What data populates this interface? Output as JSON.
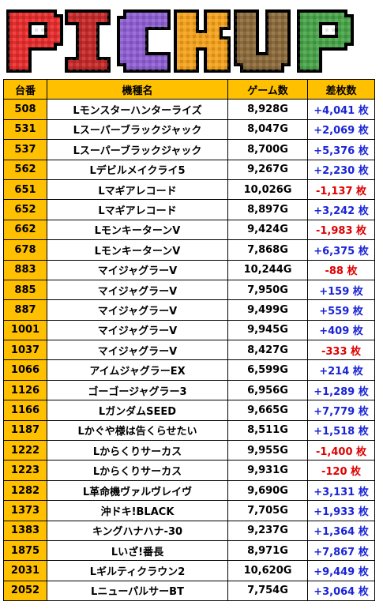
{
  "banner": {
    "letters": [
      "P",
      "I",
      "C",
      "K",
      "U",
      "P"
    ],
    "colors": [
      "#e52d2d",
      "#c42a2a",
      "#8e5fd0",
      "#f2a21e",
      "#8b6a3c",
      "#49a34a"
    ]
  },
  "table": {
    "headers": [
      "台番",
      "機種名",
      "ゲーム数",
      "差枚数"
    ],
    "rows": [
      {
        "num": "508",
        "name": "Lモンスターハンターライズ",
        "games": "8,928G",
        "diff": "+4,041 枚",
        "sign": "pos"
      },
      {
        "num": "531",
        "name": "Lスーパーブラックジャック",
        "games": "8,047G",
        "diff": "+2,069 枚",
        "sign": "pos"
      },
      {
        "num": "537",
        "name": "Lスーパーブラックジャック",
        "games": "8,700G",
        "diff": "+5,376 枚",
        "sign": "pos"
      },
      {
        "num": "562",
        "name": "Lデビルメイクライ5",
        "games": "9,267G",
        "diff": "+2,230 枚",
        "sign": "pos"
      },
      {
        "num": "651",
        "name": "Lマギアレコード",
        "games": "10,026G",
        "diff": "-1,137 枚",
        "sign": "neg"
      },
      {
        "num": "652",
        "name": "Lマギアレコード",
        "games": "8,897G",
        "diff": "+3,242 枚",
        "sign": "pos"
      },
      {
        "num": "662",
        "name": "LモンキーターンV",
        "games": "9,424G",
        "diff": "-1,983 枚",
        "sign": "neg"
      },
      {
        "num": "678",
        "name": "LモンキーターンV",
        "games": "7,868G",
        "diff": "+6,375 枚",
        "sign": "pos"
      },
      {
        "num": "883",
        "name": "マイジャグラーV",
        "games": "10,244G",
        "diff": "-88 枚",
        "sign": "neg"
      },
      {
        "num": "885",
        "name": "マイジャグラーV",
        "games": "7,950G",
        "diff": "+159 枚",
        "sign": "pos"
      },
      {
        "num": "887",
        "name": "マイジャグラーV",
        "games": "9,499G",
        "diff": "+559 枚",
        "sign": "pos"
      },
      {
        "num": "1001",
        "name": "マイジャグラーV",
        "games": "9,945G",
        "diff": "+409 枚",
        "sign": "pos"
      },
      {
        "num": "1037",
        "name": "マイジャグラーV",
        "games": "8,427G",
        "diff": "-333 枚",
        "sign": "neg"
      },
      {
        "num": "1066",
        "name": "アイムジャグラーEX",
        "games": "6,599G",
        "diff": "+214 枚",
        "sign": "pos"
      },
      {
        "num": "1126",
        "name": "ゴーゴージャグラー3",
        "games": "6,956G",
        "diff": "+1,289 枚",
        "sign": "pos"
      },
      {
        "num": "1166",
        "name": "LガンダムSEED",
        "games": "9,665G",
        "diff": "+7,779 枚",
        "sign": "pos"
      },
      {
        "num": "1187",
        "name": "Lかぐや様は告くらせたい",
        "games": "8,511G",
        "diff": "+1,518 枚",
        "sign": "pos"
      },
      {
        "num": "1222",
        "name": "Lからくりサーカス",
        "games": "9,955G",
        "diff": "-1,400 枚",
        "sign": "neg"
      },
      {
        "num": "1223",
        "name": "Lからくりサーカス",
        "games": "9,931G",
        "diff": "-120 枚",
        "sign": "neg"
      },
      {
        "num": "1282",
        "name": "L革命機ヴァルヴレイヴ",
        "games": "9,690G",
        "diff": "+3,131 枚",
        "sign": "pos"
      },
      {
        "num": "1373",
        "name": "沖ドキ!BLACK",
        "games": "7,705G",
        "diff": "+1,933 枚",
        "sign": "pos"
      },
      {
        "num": "1383",
        "name": "キングハナハナ-30",
        "games": "9,237G",
        "diff": "+1,364 枚",
        "sign": "pos"
      },
      {
        "num": "1875",
        "name": "Lいざ!番長",
        "games": "8,971G",
        "diff": "+7,867 枚",
        "sign": "pos"
      },
      {
        "num": "2031",
        "name": "Lギルティクラウン2",
        "games": "10,620G",
        "diff": "+9,449 枚",
        "sign": "pos"
      },
      {
        "num": "2052",
        "name": "LニューパルサーBT",
        "games": "7,754G",
        "diff": "+3,064 枚",
        "sign": "pos"
      }
    ]
  }
}
